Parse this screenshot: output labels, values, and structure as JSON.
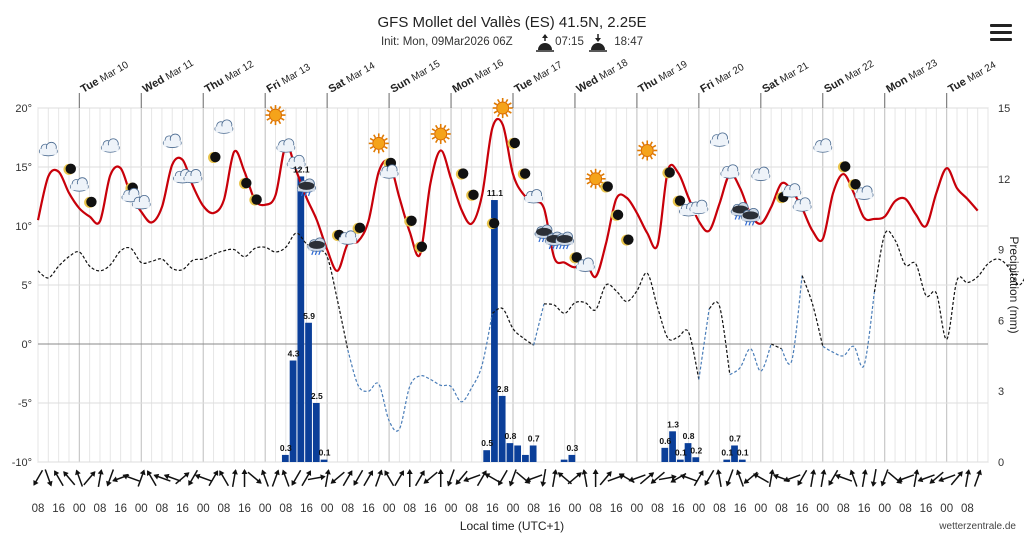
{
  "header": {
    "title": "GFS Mollet del Vallès (ES) 41.5N, 2.25E",
    "init_text": "Init: Mon, 09Mar2026 06Z",
    "sunrise": "07:15",
    "sunset": "18:47"
  },
  "footer": {
    "xlabel": "Local time (UTC+1)",
    "credit": "wetterzentrale.de"
  },
  "chart_data": {
    "type": "line",
    "y_left": {
      "min": -10,
      "max": 20,
      "ticks": [
        -10,
        -5,
        0,
        5,
        10,
        15,
        20
      ],
      "unit": "°"
    },
    "y_right": {
      "label": "Precipitation (mm)",
      "min": 0,
      "max": 15,
      "ticks": [
        0,
        3,
        6,
        9,
        12,
        15
      ]
    },
    "x_hours": {
      "start": 8,
      "end": 374,
      "step": 8
    },
    "x_tick_labels": [
      "08",
      "16",
      "00",
      "08",
      "16",
      "00",
      "08",
      "16",
      "00",
      "08",
      "16",
      "00",
      "08",
      "16",
      "00",
      "08",
      "16",
      "00",
      "08",
      "16",
      "00",
      "08",
      "16",
      "00",
      "08",
      "16",
      "00",
      "08",
      "16",
      "00",
      "08",
      "16",
      "00",
      "08",
      "16",
      "00",
      "08",
      "16",
      "00",
      "08",
      "16",
      "00",
      "08",
      "16",
      "00",
      "08"
    ],
    "days": [
      {
        "dow": "Tue",
        "date": "Mar 10"
      },
      {
        "dow": "Wed",
        "date": "Mar 11"
      },
      {
        "dow": "Thu",
        "date": "Mar 12"
      },
      {
        "dow": "Fri",
        "date": "Mar 13"
      },
      {
        "dow": "Sat",
        "date": "Mar 14"
      },
      {
        "dow": "Sun",
        "date": "Mar 15"
      },
      {
        "dow": "Mon",
        "date": "Mar 16"
      },
      {
        "dow": "Tue",
        "date": "Mar 17"
      },
      {
        "dow": "Wed",
        "date": "Mar 18"
      },
      {
        "dow": "Thu",
        "date": "Mar 19"
      },
      {
        "dow": "Fri",
        "date": "Mar 20"
      },
      {
        "dow": "Sat",
        "date": "Mar 21"
      },
      {
        "dow": "Sun",
        "date": "Mar 22"
      },
      {
        "dow": "Mon",
        "date": "Mar 23"
      },
      {
        "dow": "Tue",
        "date": "Mar 24"
      }
    ],
    "temperature": [
      [
        8,
        10.5
      ],
      [
        12,
        14.2
      ],
      [
        16,
        14.6
      ],
      [
        20,
        12.8
      ],
      [
        24,
        11.5
      ],
      [
        28,
        10.8
      ],
      [
        32,
        10.4
      ],
      [
        36,
        14.3
      ],
      [
        40,
        14.9
      ],
      [
        44,
        12.6
      ],
      [
        48,
        11.2
      ],
      [
        52,
        10.3
      ],
      [
        56,
        11.6
      ],
      [
        60,
        15.2
      ],
      [
        64,
        15.6
      ],
      [
        68,
        13.4
      ],
      [
        72,
        11.7
      ],
      [
        76,
        11.1
      ],
      [
        80,
        12.2
      ],
      [
        84,
        16.3
      ],
      [
        88,
        14.6
      ],
      [
        92,
        12.2
      ],
      [
        96,
        11.8
      ],
      [
        100,
        12.6
      ],
      [
        104,
        16.8
      ],
      [
        108,
        14.7
      ],
      [
        112,
        12.4
      ],
      [
        116,
        10.5
      ],
      [
        120,
        8.0
      ],
      [
        124,
        6.2
      ],
      [
        128,
        8.5
      ],
      [
        132,
        8.7
      ],
      [
        136,
        10.4
      ],
      [
        140,
        14.6
      ],
      [
        144,
        15.4
      ],
      [
        148,
        12.4
      ],
      [
        152,
        9.5
      ],
      [
        156,
        7.6
      ],
      [
        160,
        13.6
      ],
      [
        164,
        16.4
      ],
      [
        168,
        14.0
      ],
      [
        172,
        11.4
      ],
      [
        176,
        10.2
      ],
      [
        180,
        12.6
      ],
      [
        184,
        18.3
      ],
      [
        188,
        18.6
      ],
      [
        192,
        14.4
      ],
      [
        196,
        12.7
      ],
      [
        200,
        12.1
      ],
      [
        204,
        11.5
      ],
      [
        208,
        7.3
      ],
      [
        212,
        6.9
      ],
      [
        216,
        6.5
      ],
      [
        220,
        7.0
      ],
      [
        224,
        5.7
      ],
      [
        228,
        8.5
      ],
      [
        232,
        12.3
      ],
      [
        236,
        12.4
      ],
      [
        240,
        11.1
      ],
      [
        244,
        9.4
      ],
      [
        248,
        8.4
      ],
      [
        252,
        14.7
      ],
      [
        256,
        14.5
      ],
      [
        260,
        12.4
      ],
      [
        264,
        10.4
      ],
      [
        268,
        9.6
      ],
      [
        272,
        11.9
      ],
      [
        276,
        14.4
      ],
      [
        280,
        13.2
      ],
      [
        284,
        11.0
      ],
      [
        288,
        10.2
      ],
      [
        292,
        11.6
      ],
      [
        296,
        13.6
      ],
      [
        300,
        13.0
      ],
      [
        304,
        11.5
      ],
      [
        308,
        9.6
      ],
      [
        312,
        8.9
      ],
      [
        316,
        12.8
      ],
      [
        320,
        14.4
      ],
      [
        324,
        12.8
      ],
      [
        328,
        10.7
      ],
      [
        332,
        10.6
      ],
      [
        336,
        10.8
      ],
      [
        340,
        12.1
      ],
      [
        344,
        12.3
      ],
      [
        348,
        11.0
      ],
      [
        352,
        10.0
      ],
      [
        356,
        12.8
      ],
      [
        360,
        14.9
      ],
      [
        364,
        13.2
      ],
      [
        368,
        12.3
      ],
      [
        372,
        11.3
      ]
    ],
    "dewpoint": [
      [
        8,
        6.2
      ],
      [
        12,
        5.6
      ],
      [
        16,
        6.6
      ],
      [
        20,
        7.4
      ],
      [
        24,
        7.8
      ],
      [
        28,
        6.6
      ],
      [
        32,
        6.2
      ],
      [
        36,
        6.7
      ],
      [
        40,
        7.9
      ],
      [
        44,
        8.1
      ],
      [
        48,
        6.9
      ],
      [
        52,
        7.0
      ],
      [
        56,
        7.2
      ],
      [
        60,
        6.4
      ],
      [
        64,
        6.3
      ],
      [
        68,
        7.1
      ],
      [
        72,
        7.2
      ],
      [
        76,
        7.6
      ],
      [
        80,
        7.9
      ],
      [
        84,
        8.0
      ],
      [
        88,
        7.4
      ],
      [
        92,
        8.1
      ],
      [
        96,
        8.2
      ],
      [
        100,
        7.8
      ],
      [
        104,
        8.2
      ],
      [
        108,
        9.4
      ],
      [
        112,
        8.5
      ],
      [
        116,
        8.0
      ],
      [
        120,
        7.4
      ],
      [
        124,
        3.7
      ],
      [
        128,
        -0.5
      ],
      [
        132,
        -3.5
      ],
      [
        136,
        -4.0
      ],
      [
        140,
        -3.4
      ],
      [
        144,
        -6.5
      ],
      [
        148,
        -7.2
      ],
      [
        152,
        -3.6
      ],
      [
        156,
        -2.7
      ],
      [
        160,
        -3.0
      ],
      [
        164,
        -3.5
      ],
      [
        168,
        -3.6
      ],
      [
        172,
        -4.9
      ],
      [
        176,
        -3.7
      ],
      [
        180,
        -1.8
      ],
      [
        184,
        2.6
      ],
      [
        188,
        3.0
      ],
      [
        192,
        1.3
      ],
      [
        196,
        0.5
      ],
      [
        200,
        -0.1
      ],
      [
        204,
        3.4
      ],
      [
        208,
        3.3
      ],
      [
        212,
        2.6
      ],
      [
        216,
        3.5
      ],
      [
        220,
        3.5
      ],
      [
        224,
        2.9
      ],
      [
        228,
        5.0
      ],
      [
        232,
        4.5
      ],
      [
        236,
        3.6
      ],
      [
        240,
        4.5
      ],
      [
        244,
        6.0
      ],
      [
        248,
        3.1
      ],
      [
        252,
        0.5
      ],
      [
        256,
        0.6
      ],
      [
        260,
        1.0
      ],
      [
        264,
        -3.0
      ],
      [
        268,
        3.0
      ],
      [
        272,
        3.2
      ],
      [
        276,
        -2.6
      ],
      [
        280,
        -2.0
      ],
      [
        284,
        -0.4
      ],
      [
        288,
        -2.3
      ],
      [
        292,
        0.0
      ],
      [
        296,
        -0.4
      ],
      [
        300,
        -1.4
      ],
      [
        304,
        5.8
      ],
      [
        308,
        3.4
      ],
      [
        312,
        -0.2
      ],
      [
        316,
        -0.7
      ],
      [
        320,
        -1.0
      ],
      [
        324,
        -0.2
      ],
      [
        328,
        -1.8
      ],
      [
        332,
        4.4
      ],
      [
        336,
        9.3
      ],
      [
        340,
        8.8
      ],
      [
        344,
        6.7
      ],
      [
        348,
        6.8
      ],
      [
        352,
        4.1
      ],
      [
        356,
        4.3
      ],
      [
        360,
        0.4
      ],
      [
        364,
        5.4
      ],
      [
        368,
        5.2
      ],
      [
        372,
        5.7
      ],
      [
        376,
        6.8
      ],
      [
        380,
        7.2
      ],
      [
        384,
        6.5
      ],
      [
        388,
        5.0
      ],
      [
        392,
        6.3
      ],
      [
        396,
        7.3
      ],
      [
        400,
        7.0
      ],
      [
        404,
        6.6
      ]
    ],
    "precipitation": [
      {
        "x": 104,
        "value": 0.3,
        "label": "0.3"
      },
      {
        "x": 107,
        "value": 4.3,
        "label": "4.3"
      },
      {
        "x": 110,
        "value": 12.1,
        "label": "12.1"
      },
      {
        "x": 113,
        "value": 5.9,
        "label": "5.9"
      },
      {
        "x": 116,
        "value": 2.5,
        "label": "2.5"
      },
      {
        "x": 119,
        "value": 0.1,
        "label": "0.1"
      },
      {
        "x": 182,
        "value": 0.5,
        "label": "0.5"
      },
      {
        "x": 185,
        "value": 11.1,
        "label": "11.1"
      },
      {
        "x": 188,
        "value": 2.8,
        "label": "2.8"
      },
      {
        "x": 191,
        "value": 0.8,
        "label": "0.8"
      },
      {
        "x": 194,
        "value": 0.7,
        "label": ""
      },
      {
        "x": 197,
        "value": 0.3,
        "label": ""
      },
      {
        "x": 200,
        "value": 0.7,
        "label": "0.7"
      },
      {
        "x": 212,
        "value": 0.1,
        "label": ""
      },
      {
        "x": 215,
        "value": 0.3,
        "label": "0.3"
      },
      {
        "x": 251,
        "value": 0.6,
        "label": "0.6"
      },
      {
        "x": 254,
        "value": 1.3,
        "label": "1.3"
      },
      {
        "x": 257,
        "value": 0.1,
        "label": "0.1"
      },
      {
        "x": 260,
        "value": 0.8,
        "label": "0.8"
      },
      {
        "x": 263,
        "value": 0.2,
        "label": "0.2"
      },
      {
        "x": 275,
        "value": 0.1,
        "label": "0.1"
      },
      {
        "x": 278,
        "value": 0.7,
        "label": "0.7"
      },
      {
        "x": 281,
        "value": 0.1,
        "label": "0.1"
      }
    ],
    "weather_icons": [
      {
        "x": 12,
        "t": 16.5,
        "type": "cloud-icon"
      },
      {
        "x": 20,
        "t": 14.8,
        "type": "moon-icon"
      },
      {
        "x": 24,
        "t": 13.5,
        "type": "cloud-icon"
      },
      {
        "x": 28,
        "t": 12.0,
        "type": "moon-icon"
      },
      {
        "x": 36,
        "t": 16.8,
        "type": "cloud-icon"
      },
      {
        "x": 44,
        "t": 13.2,
        "type": "moon-icon"
      },
      {
        "x": 44,
        "t": 12.6,
        "type": "cloud-icon"
      },
      {
        "x": 48,
        "t": 12.0,
        "type": "cloud-icon"
      },
      {
        "x": 60,
        "t": 17.2,
        "type": "cloud-icon"
      },
      {
        "x": 64,
        "t": 14.2,
        "type": "cloud-icon"
      },
      {
        "x": 68,
        "t": 14.2,
        "type": "cloud-icon"
      },
      {
        "x": 76,
        "t": 15.8,
        "type": "moon-icon"
      },
      {
        "x": 80,
        "t": 18.4,
        "type": "cloud-icon"
      },
      {
        "x": 88,
        "t": 13.6,
        "type": "moon-icon"
      },
      {
        "x": 92,
        "t": 12.2,
        "type": "moon-icon"
      },
      {
        "x": 100,
        "t": 19.4,
        "type": "sun-icon"
      },
      {
        "x": 104,
        "t": 16.8,
        "type": "cloud-icon"
      },
      {
        "x": 108,
        "t": 15.4,
        "type": "cloud-icon"
      },
      {
        "x": 112,
        "t": 13.4,
        "type": "rain-cloud-icon"
      },
      {
        "x": 116,
        "t": 8.4,
        "type": "rain-cloud-icon"
      },
      {
        "x": 124,
        "t": 9.2,
        "type": "moon-icon"
      },
      {
        "x": 128,
        "t": 9.0,
        "type": "cloud-icon"
      },
      {
        "x": 132,
        "t": 9.8,
        "type": "moon-icon"
      },
      {
        "x": 140,
        "t": 17.0,
        "type": "sun-icon"
      },
      {
        "x": 144,
        "t": 15.3,
        "type": "moon-icon"
      },
      {
        "x": 144,
        "t": 14.6,
        "type": "cloud-icon"
      },
      {
        "x": 152,
        "t": 10.4,
        "type": "moon-icon"
      },
      {
        "x": 156,
        "t": 8.2,
        "type": "moon-icon"
      },
      {
        "x": 164,
        "t": 17.8,
        "type": "sun-icon"
      },
      {
        "x": 172,
        "t": 14.4,
        "type": "moon-icon"
      },
      {
        "x": 176,
        "t": 12.6,
        "type": "moon-icon"
      },
      {
        "x": 184,
        "t": 10.2,
        "type": "moon-icon"
      },
      {
        "x": 188,
        "t": 20.0,
        "type": "sun-icon"
      },
      {
        "x": 192,
        "t": 17.0,
        "type": "moon-icon"
      },
      {
        "x": 196,
        "t": 14.4,
        "type": "moon-icon"
      },
      {
        "x": 200,
        "t": 12.5,
        "type": "cloud-icon"
      },
      {
        "x": 204,
        "t": 9.5,
        "type": "rain-cloud-icon"
      },
      {
        "x": 208,
        "t": 8.9,
        "type": "rain-cloud-icon"
      },
      {
        "x": 212,
        "t": 8.9,
        "type": "rain-cloud-icon"
      },
      {
        "x": 216,
        "t": 7.3,
        "type": "moon-icon"
      },
      {
        "x": 220,
        "t": 6.7,
        "type": "cloud-icon"
      },
      {
        "x": 224,
        "t": 14.0,
        "type": "sun-icon"
      },
      {
        "x": 228,
        "t": 13.3,
        "type": "moon-icon"
      },
      {
        "x": 232,
        "t": 10.9,
        "type": "moon-icon"
      },
      {
        "x": 236,
        "t": 8.8,
        "type": "moon-icon"
      },
      {
        "x": 244,
        "t": 16.4,
        "type": "sun-icon"
      },
      {
        "x": 252,
        "t": 14.5,
        "type": "moon-icon"
      },
      {
        "x": 256,
        "t": 12.1,
        "type": "moon-icon"
      },
      {
        "x": 260,
        "t": 11.4,
        "type": "cloud-icon"
      },
      {
        "x": 264,
        "t": 11.6,
        "type": "cloud-icon"
      },
      {
        "x": 272,
        "t": 17.3,
        "type": "cloud-icon"
      },
      {
        "x": 276,
        "t": 14.6,
        "type": "cloud-icon"
      },
      {
        "x": 280,
        "t": 11.4,
        "type": "rain-cloud-icon"
      },
      {
        "x": 284,
        "t": 10.9,
        "type": "rain-cloud-icon"
      },
      {
        "x": 288,
        "t": 14.4,
        "type": "cloud-icon"
      },
      {
        "x": 296,
        "t": 12.4,
        "type": "moon-icon"
      },
      {
        "x": 300,
        "t": 13.0,
        "type": "cloud-icon"
      },
      {
        "x": 304,
        "t": 11.8,
        "type": "cloud-icon"
      },
      {
        "x": 312,
        "t": 16.8,
        "type": "cloud-icon"
      },
      {
        "x": 320,
        "t": 15.0,
        "type": "moon-icon"
      },
      {
        "x": 324,
        "t": 13.5,
        "type": "moon-icon"
      },
      {
        "x": 328,
        "t": 12.8,
        "type": "cloud-icon"
      }
    ],
    "wind_angles": [
      120,
      70,
      240,
      230,
      250,
      310,
      280,
      110,
      160,
      200,
      290,
      240,
      200,
      200,
      320,
      120,
      200,
      300,
      240,
      280,
      270,
      40,
      250,
      290,
      250,
      120,
      300,
      350,
      280,
      140,
      300,
      120,
      300,
      290,
      240,
      300,
      270,
      300,
      140,
      270,
      110,
      130,
      160,
      300,
      210,
      120,
      110,
      40,
      160,
      100,
      280,
      220,
      320,
      260,
      270,
      310,
      340,
      210,
      160,
      320,
      140,
      350,
      150,
      200,
      300,
      120,
      260,
      110,
      250,
      140,
      210,
      280,
      200,
      160,
      120,
      280,
      280,
      120,
      200,
      250,
      280,
      100,
      110,
      40,
      160,
      280,
      160,
      140,
      160,
      310,
      280,
      290
    ],
    "colors": {
      "temperature": "#c8000a",
      "dewpoint": "#111111",
      "dewpoint_below_zero": "#4a7db8",
      "precip": "#0b3f99",
      "zero_line": "#888888"
    }
  }
}
